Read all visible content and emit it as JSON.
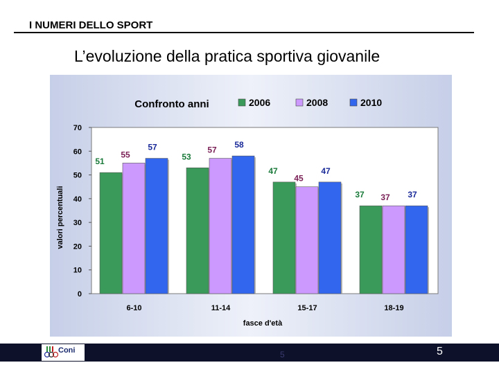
{
  "header": {
    "label": "I NUMERI DELLO SPORT"
  },
  "slide": {
    "title": "L’evoluzione della pratica sportiva giovanile"
  },
  "footer": {
    "logo_text": "Coni",
    "center_number": "5",
    "page_number": "5"
  },
  "chart_data": {
    "type": "bar",
    "title": "Confronto anni",
    "xlabel": "fasce d'età",
    "ylabel": "valori percentuali",
    "categories": [
      "6-10",
      "11-14",
      "15-17",
      "18-19"
    ],
    "series": [
      {
        "name": "2006",
        "color": "#3a9a5a",
        "values": [
          51,
          53,
          47,
          37
        ]
      },
      {
        "name": "2008",
        "color": "#cc99ff",
        "values": [
          55,
          57,
          45,
          37
        ]
      },
      {
        "name": "2010",
        "color": "#3366ee",
        "values": [
          57,
          58,
          47,
          37
        ]
      }
    ],
    "label_colors": [
      "#1a7a3a",
      "#7a1f55",
      "#1a2a99"
    ],
    "ylim": [
      0,
      70
    ],
    "yticks": [
      0,
      10,
      20,
      30,
      40,
      50,
      60,
      70
    ],
    "legend_position": "top",
    "grid": false
  }
}
